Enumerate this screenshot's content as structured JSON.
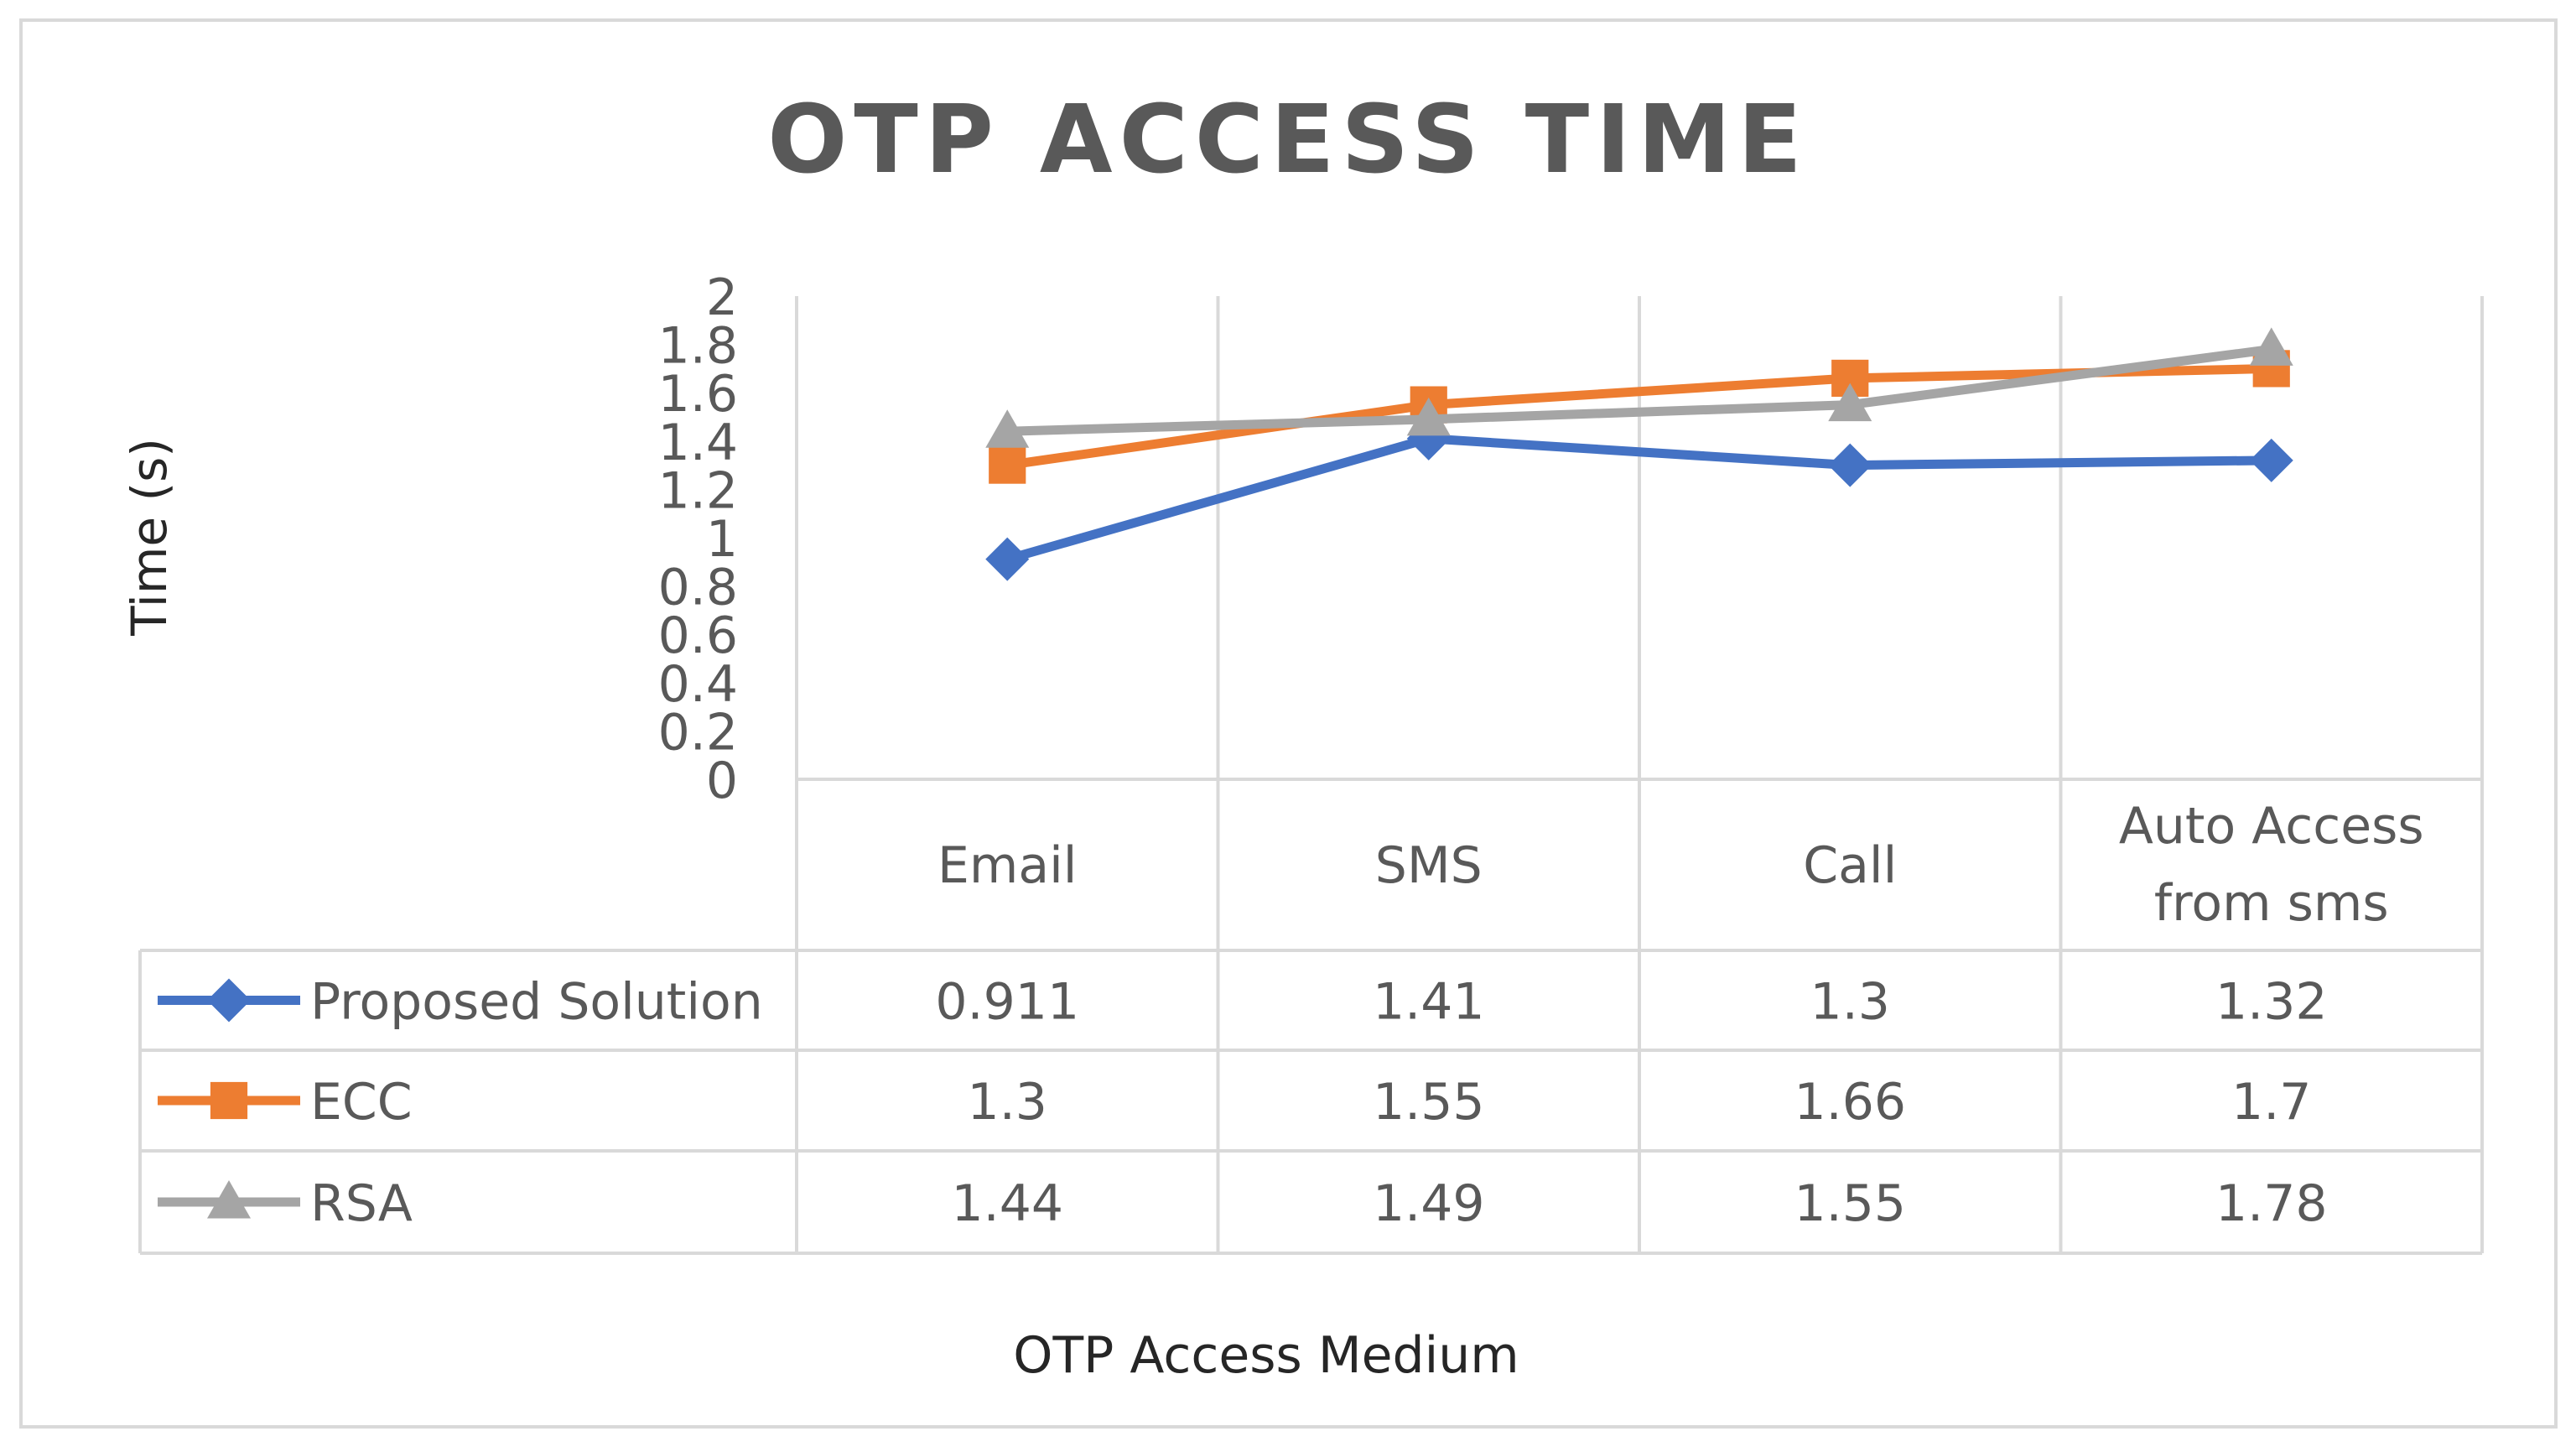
{
  "chart_data": {
    "type": "line",
    "title": "OTP ACCESS TIME",
    "xlabel": "OTP Access Medium",
    "ylabel": "Time (s)",
    "ylim": [
      0,
      2
    ],
    "yticks": [
      "0",
      "0.2",
      "0.4",
      "0.6",
      "0.8",
      "1",
      "1.2",
      "1.4",
      "1.6",
      "1.8",
      "2"
    ],
    "categories": [
      "Email",
      "SMS",
      "Call",
      "Auto Access from sms"
    ],
    "category_lines": [
      [
        "Email"
      ],
      [
        "SMS"
      ],
      [
        "Call"
      ],
      [
        "Auto Access",
        "from sms"
      ]
    ],
    "grid": "vertical",
    "legend": "data-table",
    "series": [
      {
        "name": "Proposed Solution",
        "values": [
          0.911,
          1.41,
          1.3,
          1.32
        ],
        "labels": [
          "0.911",
          "1.41",
          "1.3",
          "1.32"
        ],
        "color": "#4472C4",
        "marker": "diamond"
      },
      {
        "name": "ECC",
        "values": [
          1.3,
          1.55,
          1.66,
          1.7
        ],
        "labels": [
          "1.3",
          "1.55",
          "1.66",
          "1.7"
        ],
        "color": "#ED7D31",
        "marker": "square"
      },
      {
        "name": "RSA",
        "values": [
          1.44,
          1.49,
          1.55,
          1.78
        ],
        "labels": [
          "1.44",
          "1.49",
          "1.55",
          "1.78"
        ],
        "color": "#A5A5A5",
        "marker": "triangle"
      }
    ]
  }
}
